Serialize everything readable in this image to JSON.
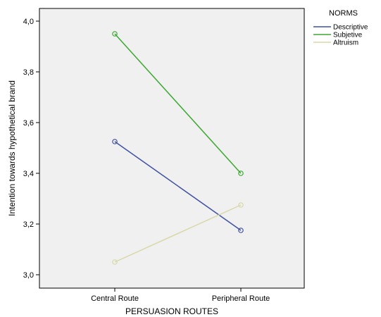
{
  "chart_data": {
    "type": "line",
    "categories": [
      "Central Route",
      "Peripheral Route"
    ],
    "series": [
      {
        "name": "Descriptive",
        "values": [
          3.525,
          3.175
        ],
        "color": "#3f51a3"
      },
      {
        "name": "Subjetive",
        "values": [
          3.95,
          3.4
        ],
        "color": "#3aa830"
      },
      {
        "name": "Altruism",
        "values": [
          3.05,
          3.275
        ],
        "color": "#d8d8a8"
      }
    ],
    "xlabel": "PERSUASION ROUTES",
    "ylabel": "Intention towards hypothetical brand",
    "ylim": [
      3.0,
      4.0
    ],
    "yticks": [
      "3,0",
      "3,2",
      "3,4",
      "3,6",
      "3,8",
      "4,0"
    ],
    "ytick_values": [
      3.0,
      3.2,
      3.4,
      3.6,
      3.8,
      4.0
    ],
    "legend_title": "NORMS",
    "legend_position": "top-right",
    "plot_background": "#f0f0f0",
    "grid": false
  }
}
